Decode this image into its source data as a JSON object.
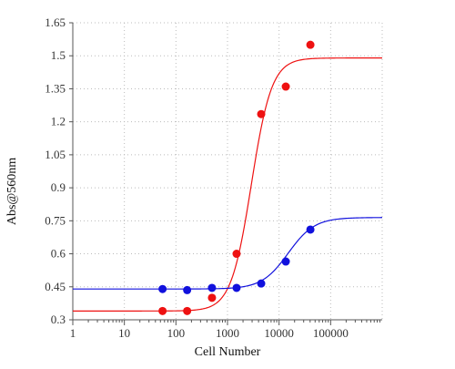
{
  "chart_data": {
    "type": "scatter",
    "title": "",
    "xlabel": "Cell Number",
    "ylabel": "Abs@560nm",
    "x_scale": "log",
    "xlim": [
      1,
      1000000
    ],
    "ylim": [
      0.3,
      1.65
    ],
    "grid": true,
    "legend": "none",
    "x_ticks": [
      {
        "value": 1,
        "label": "1"
      },
      {
        "value": 10,
        "label": "10"
      },
      {
        "value": 100,
        "label": "100"
      },
      {
        "value": 1000,
        "label": "1000"
      },
      {
        "value": 10000,
        "label": "10000"
      },
      {
        "value": 100000,
        "label": "100000"
      }
    ],
    "y_ticks": [
      {
        "value": 0.3,
        "label": "0.3"
      },
      {
        "value": 0.45,
        "label": "0.45"
      },
      {
        "value": 0.6,
        "label": "0.6"
      },
      {
        "value": 0.75,
        "label": "0.75"
      },
      {
        "value": 0.9,
        "label": "0.9"
      },
      {
        "value": 1.05,
        "label": "1.05"
      },
      {
        "value": 1.2,
        "label": "1.2"
      },
      {
        "value": 1.35,
        "label": "1.35"
      },
      {
        "value": 1.5,
        "label": "1.5"
      },
      {
        "value": 1.65,
        "label": "1.65"
      }
    ],
    "series": [
      {
        "color": "#ee1111",
        "points": [
          {
            "x": 55,
            "y": 0.34
          },
          {
            "x": 165,
            "y": 0.34
          },
          {
            "x": 500,
            "y": 0.4
          },
          {
            "x": 1500,
            "y": 0.6
          },
          {
            "x": 4500,
            "y": 1.235
          },
          {
            "x": 13500,
            "y": 1.36
          },
          {
            "x": 40500,
            "y": 1.55
          }
        ],
        "fit": {
          "bottom": 0.34,
          "top": 1.49,
          "ec50": 2900,
          "hill": 2.2
        }
      },
      {
        "color": "#1111dd",
        "points": [
          {
            "x": 55,
            "y": 0.44
          },
          {
            "x": 165,
            "y": 0.435
          },
          {
            "x": 500,
            "y": 0.445
          },
          {
            "x": 1500,
            "y": 0.445
          },
          {
            "x": 4500,
            "y": 0.465
          },
          {
            "x": 13500,
            "y": 0.565
          },
          {
            "x": 40500,
            "y": 0.71
          }
        ],
        "fit": {
          "bottom": 0.44,
          "top": 0.765,
          "ec50": 15000,
          "hill": 1.7
        }
      }
    ]
  }
}
